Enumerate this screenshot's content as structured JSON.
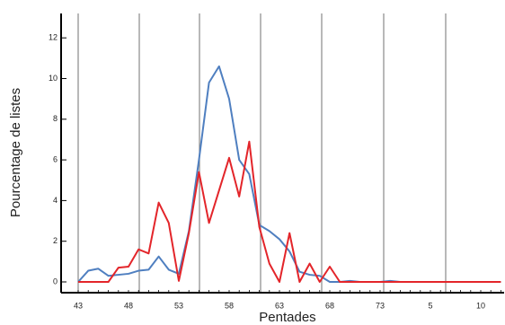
{
  "chart_data": {
    "type": "line",
    "x_label": "Pentades",
    "y_label": "Pourcentage de listes",
    "categories": [
      "43",
      null,
      null,
      null,
      null,
      "48",
      null,
      null,
      null,
      null,
      "53",
      null,
      null,
      null,
      null,
      "58",
      null,
      null,
      null,
      null,
      "63",
      null,
      null,
      null,
      null,
      "68",
      null,
      null,
      null,
      null,
      "73",
      null,
      null,
      null,
      null,
      "5",
      null,
      null,
      null,
      null,
      "10",
      null,
      null
    ],
    "series": [
      {
        "color": "#4f7fc0",
        "values": [
          0,
          0.55,
          0.65,
          0.3,
          0.35,
          0.4,
          0.55,
          0.6,
          1.25,
          0.6,
          0.4,
          2.5,
          6,
          9.8,
          10.6,
          9,
          6,
          5.3,
          2.8,
          2.5,
          2.1,
          1.5,
          0.5,
          0.35,
          0.3,
          0,
          0,
          0.05,
          0,
          0,
          0,
          0.05,
          0,
          0,
          0,
          0,
          0,
          0,
          0,
          0,
          0,
          0,
          0
        ]
      },
      {
        "color": "#e3252a",
        "values": [
          0,
          0,
          0,
          0,
          0.7,
          0.75,
          1.6,
          1.4,
          3.9,
          2.9,
          0.05,
          2.4,
          5.4,
          2.9,
          4.5,
          6.1,
          4.2,
          6.9,
          2.7,
          0.9,
          0,
          2.4,
          0,
          0.9,
          0,
          0.75,
          0,
          0,
          0,
          0,
          0,
          0,
          0,
          0,
          0,
          0,
          0,
          0,
          0,
          0,
          0,
          0,
          0
        ]
      }
    ],
    "ylim": [
      -0.53,
      13.2
    ],
    "yticks": [
      0,
      2,
      4,
      6,
      8,
      10,
      12
    ]
  }
}
